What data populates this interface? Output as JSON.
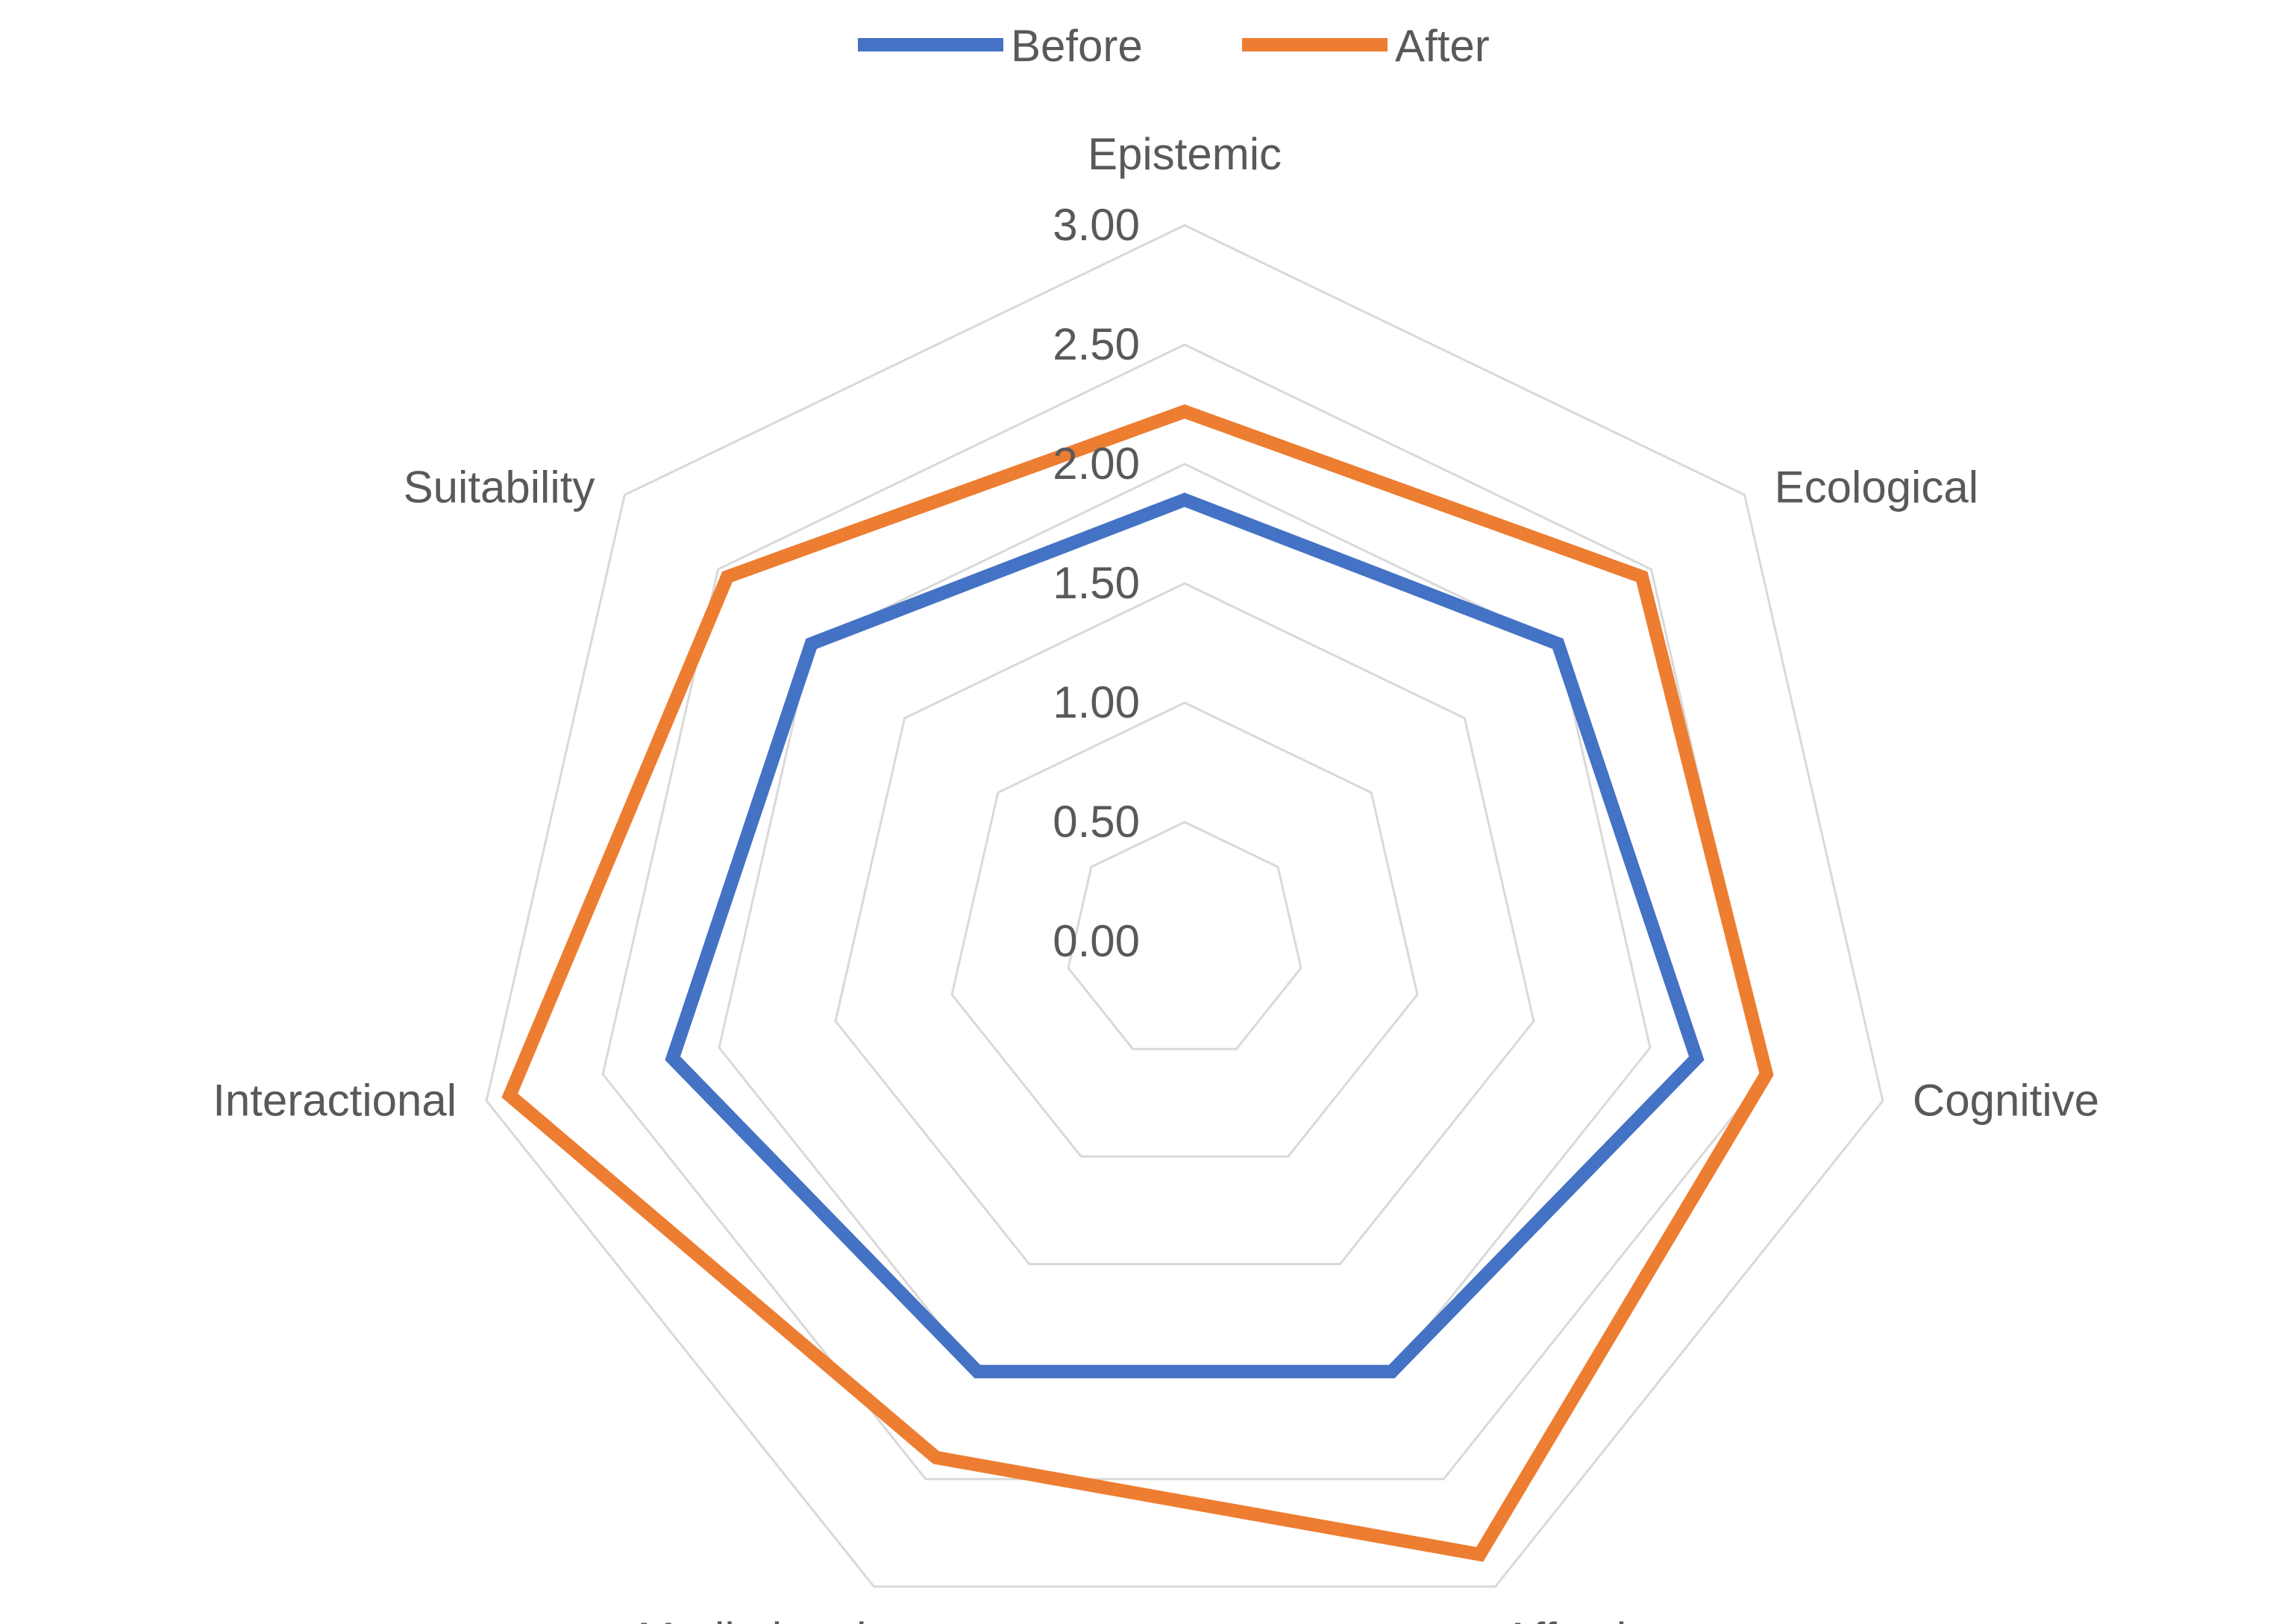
{
  "chart_data": {
    "type": "radar",
    "title": "",
    "categories": [
      "Epistemic",
      "Ecological",
      "Cognitive",
      "Affective",
      "Mediational",
      "Interactional",
      "Suitability"
    ],
    "series": [
      {
        "name": "Before",
        "color": "#4472c4",
        "values": [
          1.85,
          2.0,
          2.2,
          2.0,
          2.0,
          2.2,
          2.0
        ]
      },
      {
        "name": "After",
        "color": "#ed7d31",
        "values": [
          2.22,
          2.45,
          2.5,
          2.85,
          2.4,
          2.9,
          2.45
        ]
      }
    ],
    "rlim": [
      0,
      3
    ],
    "ticks": [
      "0.00",
      "0.50",
      "1.00",
      "1.50",
      "2.00",
      "2.50",
      "3.00"
    ],
    "tick_values": [
      0,
      0.5,
      1.0,
      1.5,
      2.0,
      2.5,
      3.0
    ],
    "legend_position": "top",
    "grid": true
  }
}
